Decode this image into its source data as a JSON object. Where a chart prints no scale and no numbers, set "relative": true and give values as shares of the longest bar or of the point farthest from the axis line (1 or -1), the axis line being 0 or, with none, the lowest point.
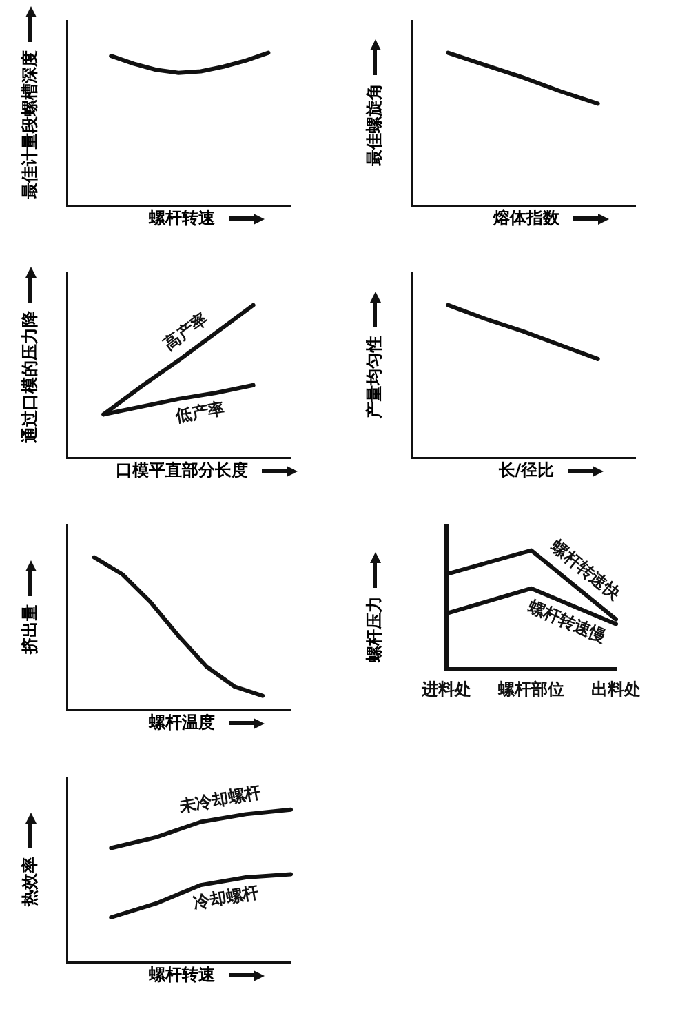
{
  "chart_data": [
    {
      "type": "line",
      "relative": true,
      "xlabel": "螺杆转速",
      "ylabel": "最佳计量段螺槽深度",
      "categories": [
        null,
        null,
        null,
        null,
        null,
        null,
        null,
        null,
        null,
        null,
        null
      ],
      "series": [
        {
          "color": "#111111",
          "values": [
            null,
            null,
            0.98,
            0.93,
            0.89,
            0.87,
            0.88,
            0.91,
            0.95,
            1,
            null
          ]
        }
      ],
      "tick_labels": false,
      "grid": false,
      "legend": false,
      "marker": "none",
      "line_style": "solid"
    },
    {
      "type": "line",
      "relative": true,
      "xlabel": "熔体指数",
      "ylabel": "最佳螺旋角",
      "categories": [
        null,
        null,
        null,
        null,
        null,
        null,
        null
      ],
      "series": [
        {
          "color": "#111111",
          "values": [
            null,
            1,
            0.92,
            0.84,
            0.75,
            0.67,
            null
          ]
        }
      ],
      "tick_labels": false,
      "grid": false,
      "legend": false,
      "marker": "none",
      "line_style": "solid"
    },
    {
      "type": "line",
      "relative": true,
      "xlabel": "口模平直部分长度",
      "ylabel": "通过口模的压力降",
      "categories": [
        null,
        null,
        null,
        null,
        null,
        null,
        null
      ],
      "series": [
        {
          "name": "高产率",
          "color": "#111111",
          "values": [
            null,
            0.29,
            0.47,
            0.64,
            0.82,
            1,
            null
          ]
        },
        {
          "name": "低产率",
          "color": "#111111",
          "values": [
            null,
            0.29,
            0.34,
            0.39,
            0.43,
            0.48,
            null
          ]
        }
      ],
      "tick_labels": false,
      "grid": false,
      "legend": false,
      "marker": "none",
      "line_style": "solid"
    },
    {
      "type": "line",
      "relative": true,
      "xlabel": "长/径比",
      "ylabel": "产量均匀性",
      "categories": [
        null,
        null,
        null,
        null,
        null,
        null,
        null
      ],
      "series": [
        {
          "color": "#111111",
          "values": [
            null,
            1,
            0.91,
            0.83,
            0.74,
            0.65,
            null
          ]
        }
      ],
      "tick_labels": false,
      "grid": false,
      "legend": false,
      "marker": "none",
      "line_style": "solid"
    },
    {
      "type": "line",
      "relative": true,
      "xlabel": "螺杆温度",
      "ylabel": "挤出量",
      "categories": [
        null,
        null,
        null,
        null,
        null,
        null,
        null,
        null,
        null
      ],
      "series": [
        {
          "color": "#111111",
          "values": [
            null,
            1,
            0.89,
            0.71,
            0.49,
            0.29,
            0.16,
            0.1,
            null
          ]
        }
      ],
      "tick_labels": false,
      "grid": false,
      "legend": false,
      "marker": "none",
      "line_style": "solid"
    },
    {
      "type": "line",
      "relative": true,
      "ylabel": "螺杆压力",
      "categories": [
        "进料处",
        "螺杆部位",
        "出料处"
      ],
      "series": [
        {
          "name": "螺杆转速快",
          "color": "#111111",
          "values": [
            0.8,
            1,
            0.42
          ]
        },
        {
          "name": "螺杆转速慢",
          "color": "#111111",
          "values": [
            0.47,
            0.68,
            0.38
          ]
        }
      ],
      "tick_labels": "x",
      "grid": false,
      "legend": false,
      "marker": "none",
      "line_style": "solid"
    },
    {
      "type": "line",
      "relative": true,
      "xlabel": "螺杆转速",
      "ylabel": "热效率",
      "categories": [
        null,
        null,
        null,
        null,
        null,
        null
      ],
      "series": [
        {
          "name": "未冷却螺杆",
          "color": "#111111",
          "values": [
            null,
            0.75,
            0.82,
            0.92,
            0.97,
            1
          ]
        },
        {
          "name": "冷却螺杆",
          "color": "#111111",
          "values": [
            null,
            0.3,
            0.39,
            0.51,
            0.56,
            0.58
          ]
        }
      ],
      "tick_labels": false,
      "grid": false,
      "legend": false,
      "marker": "none",
      "line_style": "solid"
    }
  ]
}
